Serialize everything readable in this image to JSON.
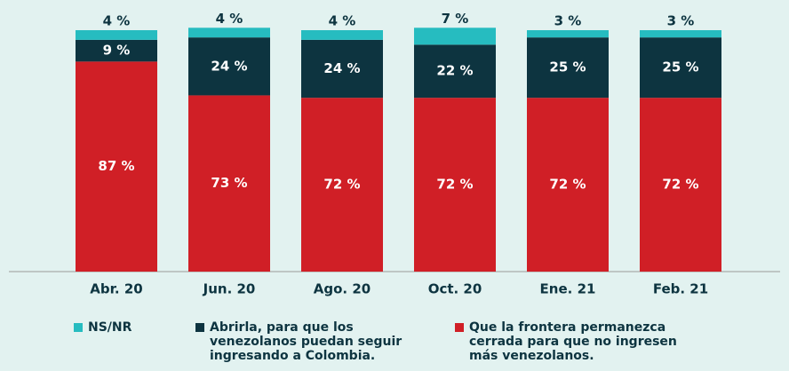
{
  "chart_data": {
    "type": "stacked-bar",
    "categories": [
      "Abr. 20",
      "Jun. 20",
      "Ago. 20",
      "Oct. 20",
      "Ene. 21",
      "Feb. 21"
    ],
    "series": [
      {
        "name": "Que la frontera permanezca cerrada para que no ingresen más venezolanos.",
        "color": "#d01f26",
        "values": [
          87,
          73,
          72,
          72,
          72,
          72
        ],
        "value_labels": [
          "87 %",
          "73 %",
          "72 %",
          "72 %",
          "72 %",
          "72 %"
        ]
      },
      {
        "name": "Abrirla, para que los venezolanos puedan seguir ingresando a Colombia.",
        "color": "#0d3440",
        "values": [
          9,
          24,
          24,
          22,
          25,
          25
        ],
        "value_labels": [
          "9 %",
          "24 %",
          "24 %",
          "22 %",
          "25 %",
          "25 %"
        ]
      },
      {
        "name": "NS/NR",
        "color": "#26bcc0",
        "values": [
          4,
          4,
          4,
          7,
          3,
          3
        ],
        "value_labels": [
          "4 %",
          "4 %",
          "4 %",
          "7 %",
          "3 %",
          "3 %"
        ]
      }
    ],
    "ylim": [
      0,
      100
    ]
  }
}
